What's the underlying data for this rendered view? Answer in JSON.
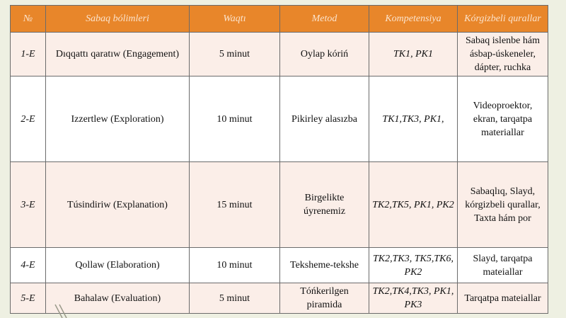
{
  "table": {
    "header": [
      "№",
      "Sabaq bólimleri",
      "Waqtı",
      "Metod",
      "Kompetensiya",
      "Kórgizbeli qurallar"
    ],
    "rows": [
      [
        "1-E",
        "Dıqqattı qaratıw (Engagement)",
        "5 minut",
        "Oylap kóriń",
        "TK1, PK1",
        "Sabaq islenbe hám ásbap-úskeneler, dápter, ruchka"
      ],
      [
        "2-E",
        "Izzertlew (Exploration)",
        "10 minut",
        "Pikirley alasızba",
        "TK1,TK3, PK1,",
        "Videoproektor, ekran, tarqatpa materiallar"
      ],
      [
        "3-E",
        "Túsindiriw (Explanation)",
        "15 minut",
        "Birgelikte úyrenemiz",
        "TK2,TK5, PK1, PK2",
        "Sabaqlıq, Slayd, kórgizbeli qurallar, Taxta hám por"
      ],
      [
        "4-E",
        "Qollaw (Elaboration)",
        "10 minut",
        "Teksheme-tekshe",
        "TK2,TK3, TK5,TK6, PK2",
        "Slayd, tarqatpa mateiallar"
      ],
      [
        "5-E",
        "Bahalaw (Evaluation)",
        "5 minut",
        "Tóńkerilgen piramida",
        "TK2,TK4,TK3, PK1, PK3",
        "Tarqatpa mateiallar"
      ]
    ]
  }
}
